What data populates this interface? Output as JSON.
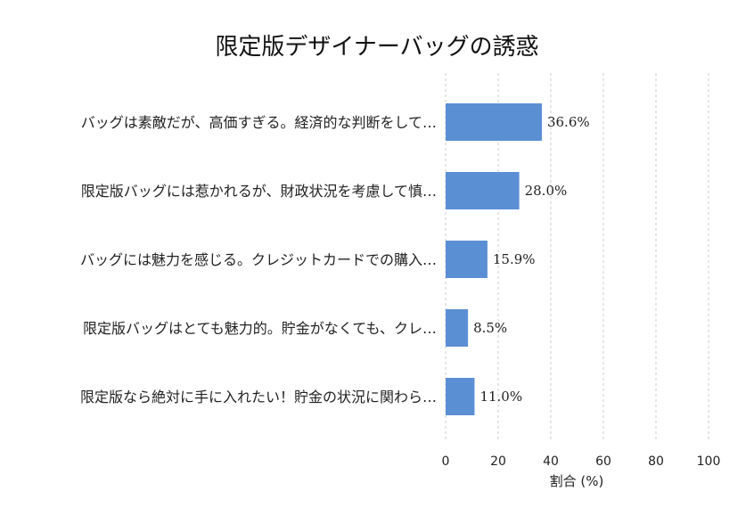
{
  "chart_data": {
    "type": "bar",
    "orientation": "horizontal",
    "title": "限定版デザイナーバッグの誘惑",
    "xlabel": "割合 (%)",
    "ylabel": "",
    "xlim": [
      0,
      100
    ],
    "xticks": [
      0,
      20,
      40,
      60,
      80,
      100
    ],
    "grid": "x-dashed",
    "bar_color": "#5b8fd4",
    "categories": [
      "バッグは素敵だが、高価すぎる。経済的な判断をして…",
      "限定版バッグには惹かれるが、財政状況を考慮して慎…",
      "バッグには魅力を感じる。クレジットカードでの購入…",
      "限定版バッグはとても魅力的。貯金がなくても、クレ…",
      "限定版なら絶対に手に入れたい！貯金の状況に関わら…"
    ],
    "values": [
      36.6,
      28.0,
      15.9,
      8.5,
      11.0
    ],
    "value_labels": [
      "36.6%",
      "28.0%",
      "15.9%",
      "8.5%",
      "11.0%"
    ]
  }
}
